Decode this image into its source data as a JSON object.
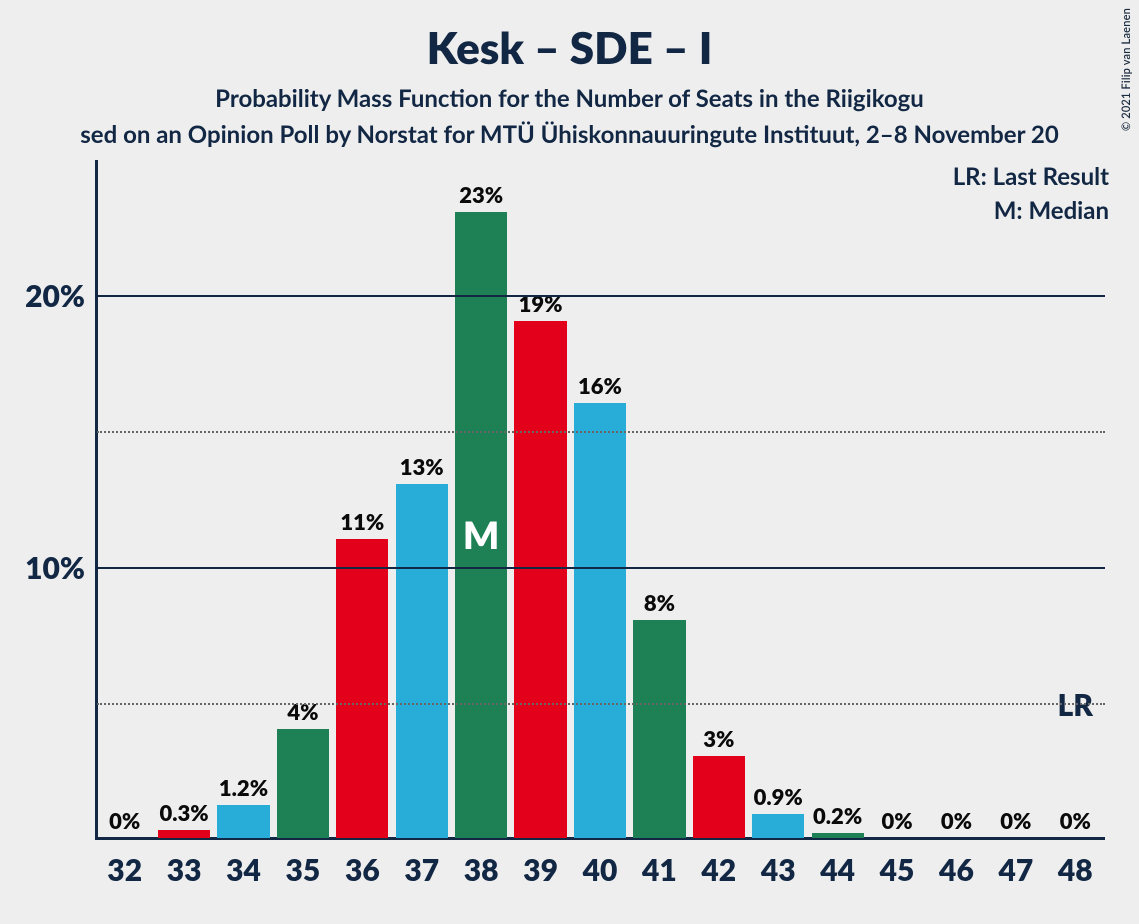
{
  "title": "Kesk – SDE – I",
  "subtitle1": "Probability Mass Function for the Number of Seats in the Riigikogu",
  "subtitle2": "sed on an Opinion Poll by Norstat for MTÜ Ühiskonnauuringute Instituut, 2–8 November 20",
  "copyright": "© 2021 Filip van Laenen",
  "legend": {
    "lr": "LR: Last Result",
    "m": "M: Median"
  },
  "chart": {
    "type": "bar",
    "background_color": "#eeeeee",
    "axis_color": "#122744",
    "grid_major_color": "#122744",
    "grid_minor_color": "#666666",
    "text_color": "#122744",
    "bar_label_color": "#0a0a0a",
    "median_text_color": "#ffffff",
    "title_fontsize": 44,
    "subtitle_fontsize": 24,
    "ytick_fontsize": 30,
    "xtick_fontsize": 30,
    "barlabel_fontsize": 22,
    "ymax": 25,
    "major_ticks": [
      10,
      20
    ],
    "minor_ticks": [
      5,
      15
    ],
    "ytick_labels": {
      "10": "10%",
      "20": "20%"
    },
    "colors": {
      "kesk": "#1d8155",
      "sde": "#e2001a",
      "i": "#27add8"
    },
    "color_cycle": [
      "kesk",
      "sde",
      "i"
    ],
    "categories": [
      32,
      33,
      34,
      35,
      36,
      37,
      38,
      39,
      40,
      41,
      42,
      43,
      44,
      45,
      46,
      47,
      48
    ],
    "values": [
      0,
      0.3,
      1.2,
      4,
      11,
      13,
      23,
      19,
      16,
      8,
      3,
      0.9,
      0.2,
      0,
      0,
      0,
      0
    ],
    "labels": [
      "0%",
      "0.3%",
      "1.2%",
      "4%",
      "11%",
      "13%",
      "23%",
      "19%",
      "16%",
      "8%",
      "3%",
      "0.9%",
      "0.2%",
      "0%",
      "0%",
      "0%",
      "0%"
    ],
    "median_category": 38,
    "median_label": "M",
    "lr_category": 48,
    "lr_label": "LR"
  }
}
